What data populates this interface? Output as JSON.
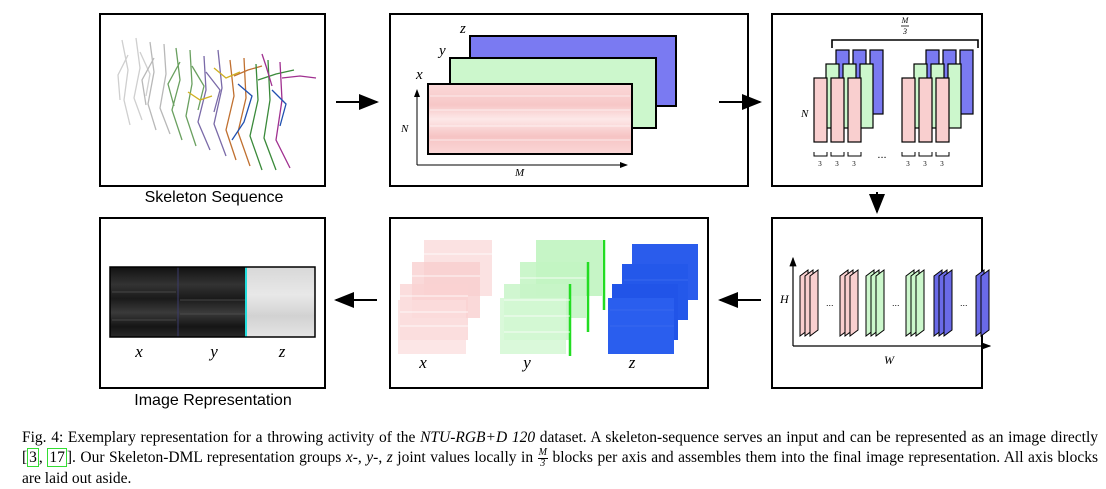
{
  "panels": {
    "skeleton": {
      "label": "Skeleton Sequence"
    },
    "axes_stack": {
      "axis_x": "x",
      "axis_y": "y",
      "axis_z": "z",
      "axis_n": "N",
      "axis_m": "M"
    },
    "grouping": {
      "axis_n": "N",
      "top_num": "M",
      "top_den": "3",
      "block_label": "3",
      "ellipsis": "..."
    },
    "layout": {
      "axis_h": "H",
      "axis_w": "W",
      "ellipsis": "..."
    },
    "blocks": {
      "label_x": "x",
      "label_y": "y",
      "label_z": "z"
    },
    "image": {
      "label": "Image Representation",
      "label_x": "x",
      "label_y": "y",
      "label_z": "z"
    }
  },
  "caption": {
    "prefix": "Fig. 4: Exemplary representation for a throwing activity of the ",
    "dataset": "NTU-RGB+D 120",
    "part2": " dataset. A skeleton-sequence serves an input and can be represented as an image directly [",
    "ref1": "3",
    "sep": ", ",
    "ref2": "17",
    "part3": "]. Our Skeleton-DML representation groups ",
    "var_x": "x",
    "dash1": "-, ",
    "var_y": "y",
    "dash2": "-, ",
    "var_z": "z",
    "part4": " joint values locally in ",
    "frac_num": "M",
    "frac_den": "3",
    "part5": " blocks per axis and assembles them into the final image representation. All axis blocks are laid out aside."
  },
  "colors": {
    "pink": "#f9cfcf",
    "green": "#c8f5c8",
    "blue": "#7070f0",
    "bright_blue": "#2255ee",
    "bright_green": "#22dd22",
    "cyan": "#22dddd"
  }
}
